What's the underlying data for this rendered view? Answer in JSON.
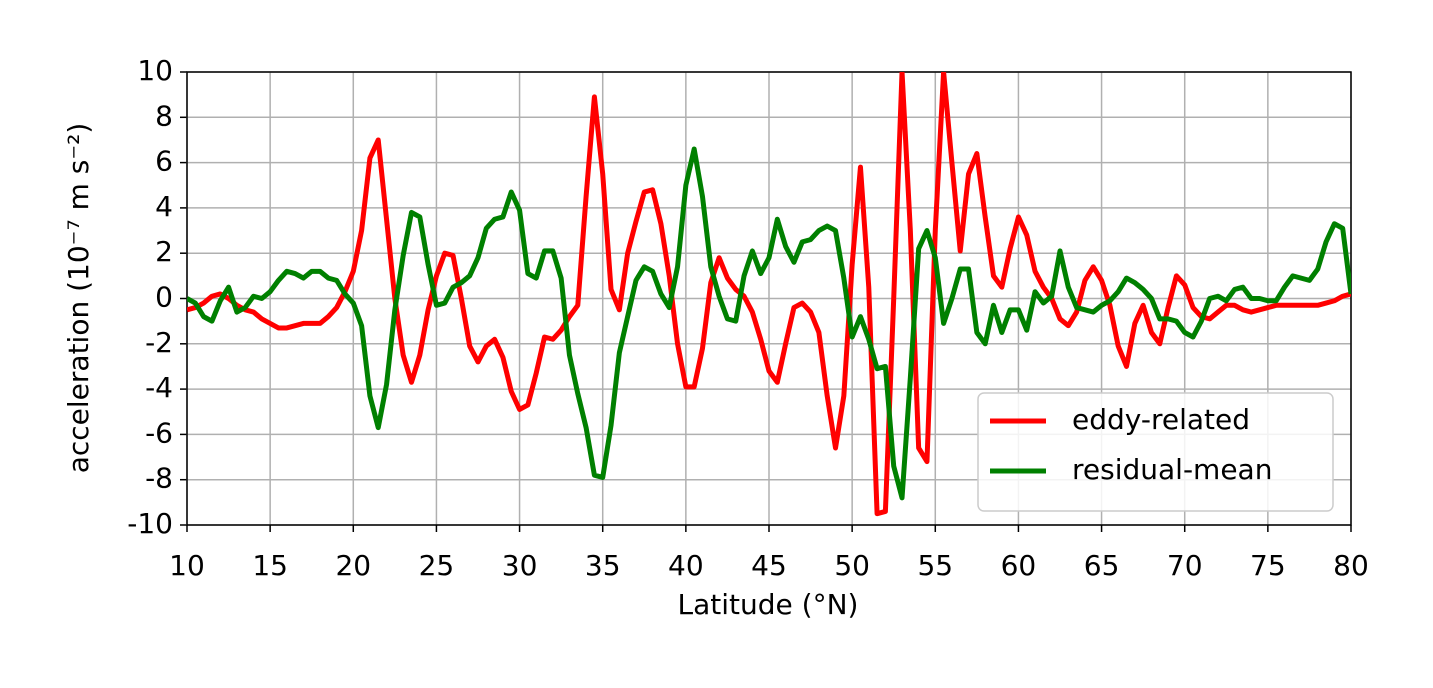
{
  "chart_data": {
    "type": "line",
    "xlabel": "Latitude (°N)",
    "ylabel": "acceleration (10⁻⁷ m s⁻²)",
    "x": [
      10,
      10.5,
      11,
      11.5,
      12,
      12.5,
      13,
      13.5,
      14,
      14.5,
      15,
      15.5,
      16,
      16.5,
      17,
      17.5,
      18,
      18.5,
      19,
      19.5,
      20,
      20.5,
      21,
      21.5,
      22,
      22.5,
      23,
      23.5,
      24,
      24.5,
      25,
      25.5,
      26,
      26.5,
      27,
      27.5,
      28,
      28.5,
      29,
      29.5,
      30,
      30.5,
      31,
      31.5,
      32,
      32.5,
      33,
      33.5,
      34,
      34.5,
      35,
      35.5,
      36,
      36.5,
      37,
      37.5,
      38,
      38.5,
      39,
      39.5,
      40,
      40.5,
      41,
      41.5,
      42,
      42.5,
      43,
      43.5,
      44,
      44.5,
      45,
      45.5,
      46,
      46.5,
      47,
      47.5,
      48,
      48.5,
      49,
      49.5,
      50,
      50.5,
      51,
      51.5,
      52,
      52.5,
      53,
      53.5,
      54,
      54.5,
      55,
      55.5,
      56,
      56.5,
      57,
      57.5,
      58,
      58.5,
      59,
      59.5,
      60,
      60.5,
      61,
      61.5,
      62,
      62.5,
      63,
      63.5,
      64,
      64.5,
      65,
      65.5,
      66,
      66.5,
      67,
      67.5,
      68,
      68.5,
      69,
      69.5,
      70,
      70.5,
      71,
      71.5,
      72,
      72.5,
      73,
      73.5,
      74,
      74.5,
      75,
      75.5,
      76,
      76.5,
      77,
      77.5,
      78,
      78.5,
      79,
      79.5,
      80
    ],
    "series": [
      {
        "name": "eddy-related",
        "color": "#ff0000",
        "values": [
          -0.5,
          -0.4,
          -0.2,
          0.1,
          0.2,
          0.0,
          -0.3,
          -0.5,
          -0.6,
          -0.9,
          -1.1,
          -1.3,
          -1.3,
          -1.2,
          -1.1,
          -1.1,
          -1.1,
          -0.8,
          -0.4,
          0.3,
          1.2,
          3.0,
          6.2,
          7.0,
          3.5,
          0.0,
          -2.5,
          -3.7,
          -2.5,
          -0.5,
          1.0,
          2.0,
          1.9,
          0.0,
          -2.1,
          -2.8,
          -2.1,
          -1.8,
          -2.6,
          -4.1,
          -4.9,
          -4.7,
          -3.3,
          -1.7,
          -1.8,
          -1.4,
          -0.8,
          -0.3,
          4.5,
          8.9,
          5.5,
          0.4,
          -0.5,
          2.0,
          3.4,
          4.7,
          4.8,
          3.3,
          1.0,
          -2.0,
          -3.9,
          -3.9,
          -2.2,
          0.7,
          1.8,
          0.9,
          0.4,
          0.1,
          -0.6,
          -1.8,
          -3.2,
          -3.7,
          -2.0,
          -0.4,
          -0.2,
          -0.6,
          -1.5,
          -4.3,
          -6.6,
          -4.3,
          1.5,
          5.8,
          0.5,
          -9.5,
          -9.4,
          0.0,
          10.0,
          3.0,
          -6.6,
          -7.2,
          3.0,
          10.0,
          6.0,
          2.1,
          5.5,
          6.4,
          3.6,
          1.0,
          0.5,
          2.2,
          3.6,
          2.8,
          1.2,
          0.5,
          0.0,
          -0.9,
          -1.2,
          -0.6,
          0.8,
          1.4,
          0.8,
          -0.3,
          -2.1,
          -3.0,
          -1.1,
          -0.3,
          -1.5,
          -2.0,
          -0.4,
          1.0,
          0.6,
          -0.4,
          -0.8,
          -0.9,
          -0.6,
          -0.3,
          -0.3,
          -0.5,
          -0.6,
          -0.5,
          -0.4,
          -0.3,
          -0.3,
          -0.3,
          -0.3,
          -0.3,
          -0.3,
          -0.2,
          -0.1,
          0.1,
          0.2
        ]
      },
      {
        "name": "residual-mean",
        "color": "#008000",
        "values": [
          0.0,
          -0.2,
          -0.8,
          -1.0,
          -0.1,
          0.5,
          -0.6,
          -0.4,
          0.1,
          0.0,
          0.3,
          0.8,
          1.2,
          1.1,
          0.9,
          1.2,
          1.2,
          0.9,
          0.8,
          0.2,
          -0.2,
          -1.2,
          -4.3,
          -5.7,
          -3.8,
          -0.5,
          1.9,
          3.8,
          3.6,
          1.5,
          -0.3,
          -0.2,
          0.5,
          0.7,
          1.0,
          1.8,
          3.1,
          3.5,
          3.6,
          4.7,
          3.9,
          1.1,
          0.9,
          2.1,
          2.1,
          0.9,
          -2.5,
          -4.2,
          -5.7,
          -7.8,
          -7.9,
          -5.6,
          -2.4,
          -0.8,
          0.8,
          1.4,
          1.2,
          0.2,
          -0.4,
          1.4,
          5.0,
          6.6,
          4.5,
          1.4,
          0.1,
          -0.9,
          -1.0,
          1.0,
          2.1,
          1.1,
          1.8,
          3.5,
          2.3,
          1.6,
          2.5,
          2.6,
          3.0,
          3.2,
          3.0,
          0.9,
          -1.7,
          -0.8,
          -1.8,
          -3.1,
          -3.0,
          -7.4,
          -8.8,
          -3.5,
          2.2,
          3.0,
          1.8,
          -1.1,
          0.0,
          1.3,
          1.3,
          -1.5,
          -2.0,
          -0.3,
          -1.5,
          -0.5,
          -0.5,
          -1.4,
          0.3,
          -0.2,
          0.1,
          2.1,
          0.5,
          -0.4,
          -0.5,
          -0.6,
          -0.3,
          -0.1,
          0.3,
          0.9,
          0.7,
          0.4,
          0.0,
          -0.9,
          -0.9,
          -1.0,
          -1.5,
          -1.7,
          -1.0,
          0.0,
          0.1,
          -0.1,
          0.4,
          0.5,
          0.0,
          0.0,
          -0.1,
          -0.1,
          0.5,
          1.0,
          0.9,
          0.8,
          1.3,
          2.5,
          3.3,
          3.1,
          0.2
        ]
      }
    ],
    "xlim": [
      10,
      80
    ],
    "xticks": [
      10,
      15,
      20,
      25,
      30,
      35,
      40,
      45,
      50,
      55,
      60,
      65,
      70,
      75,
      80
    ],
    "ylim": [
      -10,
      10
    ],
    "yticks": [
      -10,
      -8,
      -6,
      -4,
      -2,
      0,
      2,
      4,
      6,
      8,
      10
    ],
    "grid": true,
    "legend": "lower right"
  }
}
